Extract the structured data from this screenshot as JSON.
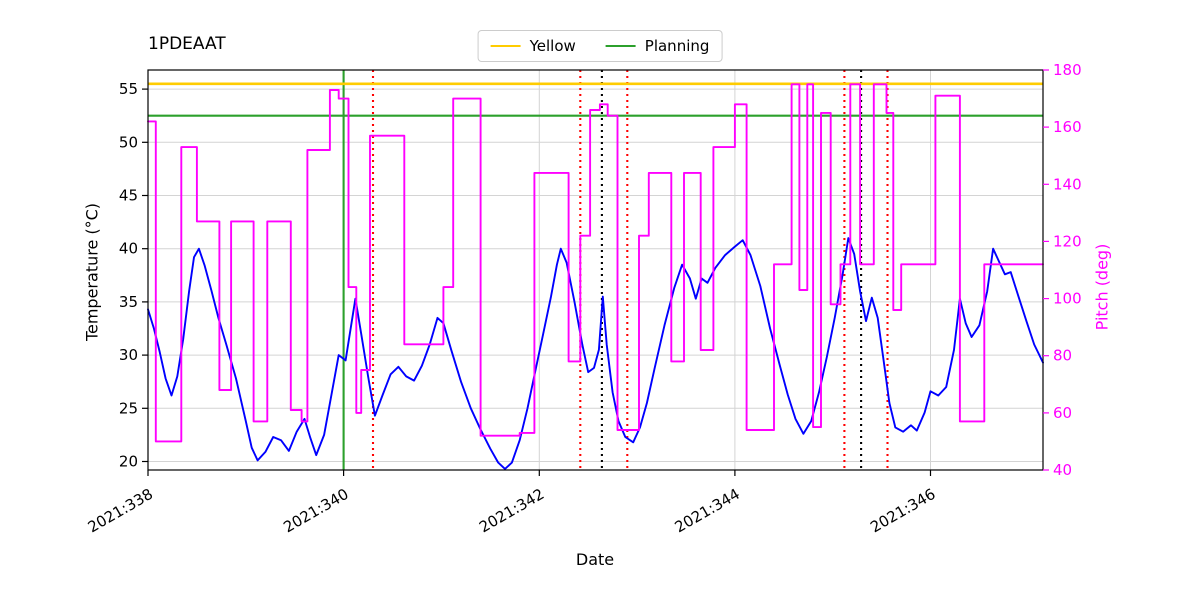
{
  "title": "1PDEAAT",
  "legend": {
    "position": "top-center",
    "items": [
      {
        "label": "Yellow",
        "color": "#ffcc00"
      },
      {
        "label": "Planning",
        "color": "#2ca02c"
      }
    ]
  },
  "chart_data": {
    "type": "line",
    "title": "1PDEAAT",
    "xlabel": "Date",
    "ylabel_left": "Temperature (°C)",
    "ylabel_right": "Pitch (deg)",
    "xlim": [
      338.0,
      347.15
    ],
    "xticks": [
      338,
      340,
      342,
      344,
      346
    ],
    "xtick_labels": [
      "2021:338",
      "2021:340",
      "2021:342",
      "2021:344",
      "2021:346"
    ],
    "ylim_left": [
      19.2,
      56.8
    ],
    "yticks_left": [
      20,
      25,
      30,
      35,
      40,
      45,
      50,
      55
    ],
    "ylim_right": [
      40,
      180
    ],
    "yticks_right": [
      40,
      60,
      80,
      100,
      120,
      140,
      160,
      180
    ],
    "grid": true,
    "grid_color": "#d4d4d4",
    "spine_color": "#000000",
    "right_axis_color": "#ff00ff",
    "series": [
      {
        "name": "temperature",
        "axis": "left",
        "draw": "line",
        "color": "#0000ff",
        "x": [
          338.0,
          338.06,
          338.12,
          338.18,
          338.24,
          338.3,
          338.36,
          338.42,
          338.47,
          338.52,
          338.58,
          338.65,
          338.72,
          338.8,
          338.9,
          339.0,
          339.06,
          339.12,
          339.2,
          339.28,
          339.36,
          339.44,
          339.52,
          339.6,
          339.66,
          339.72,
          339.8,
          339.88,
          339.95,
          340.02,
          340.08,
          340.12,
          340.18,
          340.25,
          340.32,
          340.4,
          340.48,
          340.56,
          340.64,
          340.72,
          340.8,
          340.88,
          340.96,
          341.02,
          341.1,
          341.2,
          341.3,
          341.4,
          341.5,
          341.58,
          341.65,
          341.72,
          341.8,
          341.88,
          341.96,
          342.04,
          342.12,
          342.18,
          342.22,
          342.28,
          342.36,
          342.44,
          342.5,
          342.56,
          342.61,
          342.65,
          342.69,
          342.75,
          342.81,
          342.88,
          342.96,
          343.03,
          343.1,
          343.18,
          343.28,
          343.38,
          343.46,
          343.54,
          343.6,
          343.66,
          343.72,
          343.8,
          343.9,
          344.0,
          344.08,
          344.16,
          344.26,
          344.36,
          344.46,
          344.54,
          344.62,
          344.7,
          344.78,
          344.86,
          344.94,
          345.02,
          345.1,
          345.16,
          345.22,
          345.28,
          345.34,
          345.4,
          345.46,
          345.52,
          345.58,
          345.64,
          345.72,
          345.8,
          345.86,
          345.94,
          346.0,
          346.08,
          346.16,
          346.24,
          346.3,
          346.36,
          346.42,
          346.5,
          346.58,
          346.64,
          346.7,
          346.76,
          346.82,
          346.9,
          346.98,
          347.06,
          347.15
        ],
        "y": [
          34.3,
          32.5,
          30.3,
          27.8,
          26.2,
          28.0,
          31.5,
          36.0,
          39.2,
          40.0,
          38.4,
          36.0,
          33.5,
          31.0,
          27.8,
          23.8,
          21.3,
          20.1,
          20.9,
          22.3,
          22.0,
          21.0,
          22.8,
          24.0,
          22.2,
          20.6,
          22.5,
          26.5,
          30.0,
          29.5,
          33.0,
          35.3,
          32.0,
          28.0,
          24.3,
          26.3,
          28.2,
          28.9,
          28.0,
          27.6,
          29.0,
          31.0,
          33.5,
          33.0,
          30.5,
          27.5,
          25.0,
          23.0,
          21.2,
          19.9,
          19.3,
          19.9,
          22.0,
          25.0,
          28.5,
          32.0,
          35.5,
          38.5,
          40.0,
          38.7,
          35.0,
          31.0,
          28.4,
          28.8,
          30.5,
          35.5,
          31.0,
          26.5,
          23.8,
          22.3,
          21.8,
          23.2,
          25.5,
          28.8,
          32.8,
          36.3,
          38.5,
          37.2,
          35.3,
          37.2,
          36.8,
          38.2,
          39.4,
          40.2,
          40.8,
          39.4,
          36.5,
          32.5,
          29.0,
          26.3,
          24.0,
          22.6,
          23.8,
          26.5,
          29.8,
          33.5,
          37.5,
          41.0,
          39.5,
          36.0,
          33.2,
          35.4,
          33.5,
          29.5,
          25.5,
          23.2,
          22.8,
          23.4,
          22.9,
          24.6,
          26.6,
          26.2,
          27.0,
          30.5,
          35.3,
          33.0,
          31.7,
          32.8,
          36.0,
          40.0,
          38.8,
          37.6,
          37.8,
          35.5,
          33.2,
          31.0,
          29.3
        ]
      },
      {
        "name": "pitch",
        "axis": "right",
        "draw": "step",
        "color": "#ff00ff",
        "x": [
          338.0,
          338.08,
          338.34,
          338.5,
          338.73,
          338.85,
          339.08,
          339.22,
          339.46,
          339.57,
          339.63,
          339.86,
          339.95,
          340.05,
          340.13,
          340.18,
          340.27,
          340.62,
          341.02,
          341.12,
          341.4,
          341.8,
          341.95,
          342.3,
          342.42,
          342.52,
          342.62,
          342.7,
          342.8,
          343.02,
          343.12,
          343.35,
          343.48,
          343.65,
          343.78,
          344.0,
          344.12,
          344.4,
          344.58,
          344.66,
          344.74,
          344.8,
          344.88,
          344.98,
          345.08,
          345.18,
          345.28,
          345.42,
          345.55,
          345.62,
          345.7,
          346.05,
          346.3,
          346.55
        ],
        "y": [
          162,
          50,
          153,
          127,
          68,
          127,
          57,
          127,
          61,
          57,
          152,
          173,
          170,
          104,
          60,
          75,
          157,
          84,
          104,
          170,
          52,
          53,
          144,
          78,
          122,
          166,
          168,
          164,
          54,
          122,
          144,
          78,
          144,
          82,
          153,
          168,
          54,
          112,
          175,
          103,
          175,
          55,
          165,
          98,
          112,
          175,
          112,
          175,
          165,
          96,
          112,
          171,
          57,
          112
        ]
      }
    ],
    "limit_lines": [
      {
        "name": "yellow-limit",
        "value": 55.5,
        "color": "#ffcc00",
        "width": 2.6
      },
      {
        "name": "planning-limit",
        "value": 52.5,
        "color": "#2ca02c",
        "width": 2.2
      }
    ],
    "event_lines": [
      {
        "x": 340.0,
        "color": "#2ca02c",
        "style": "solid"
      },
      {
        "x": 340.3,
        "color": "#ff0000",
        "style": "dotted"
      },
      {
        "x": 342.42,
        "color": "#ff0000",
        "style": "dotted"
      },
      {
        "x": 342.64,
        "color": "#000000",
        "style": "dotted"
      },
      {
        "x": 342.9,
        "color": "#ff0000",
        "style": "dotted"
      },
      {
        "x": 345.12,
        "color": "#ff0000",
        "style": "dotted"
      },
      {
        "x": 345.29,
        "color": "#000000",
        "style": "dotted"
      },
      {
        "x": 345.56,
        "color": "#ff0000",
        "style": "dotted"
      }
    ]
  }
}
